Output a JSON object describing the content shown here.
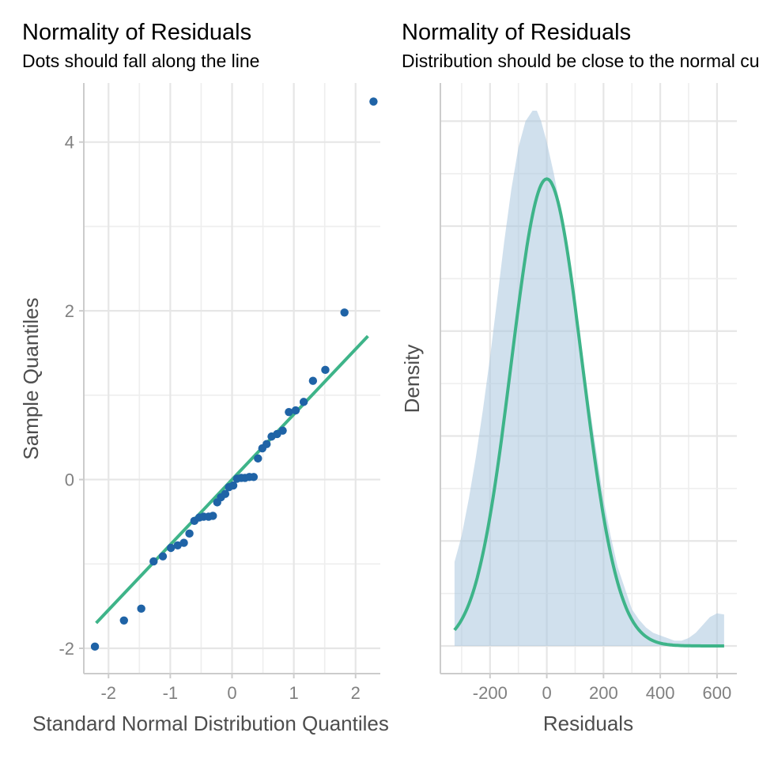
{
  "chart_data": [
    {
      "type": "scatter",
      "title": "Normality of Residuals",
      "subtitle": "Dots should fall along the line",
      "xlabel": "Standard Normal Distribution Quantiles",
      "ylabel": "Sample Quantiles",
      "xlim": [
        -2.4,
        2.4
      ],
      "ylim": [
        -2.3,
        4.7
      ],
      "x_major_ticks": [
        -2,
        -1,
        0,
        1,
        2
      ],
      "y_major_ticks": [
        -2,
        0,
        2,
        4
      ],
      "x_minor_ticks": [
        -1.5,
        -0.5,
        0.5,
        1.5
      ],
      "y_minor_ticks": [
        -1,
        1,
        3
      ],
      "grid": true,
      "point_color": "#1f63a6",
      "line_color": "#3eb489",
      "reference_line": {
        "x": [
          -2.2,
          2.2
        ],
        "y": [
          -1.7,
          1.7
        ]
      },
      "points": [
        {
          "x": -2.22,
          "y": -1.98
        },
        {
          "x": -1.75,
          "y": -1.67
        },
        {
          "x": -1.47,
          "y": -1.53
        },
        {
          "x": -1.27,
          "y": -0.97
        },
        {
          "x": -1.12,
          "y": -0.91
        },
        {
          "x": -0.99,
          "y": -0.81
        },
        {
          "x": -0.88,
          "y": -0.78
        },
        {
          "x": -0.78,
          "y": -0.75
        },
        {
          "x": -0.69,
          "y": -0.64
        },
        {
          "x": -0.61,
          "y": -0.49
        },
        {
          "x": -0.53,
          "y": -0.45
        },
        {
          "x": -0.46,
          "y": -0.44
        },
        {
          "x": -0.38,
          "y": -0.44
        },
        {
          "x": -0.31,
          "y": -0.43
        },
        {
          "x": -0.24,
          "y": -0.27
        },
        {
          "x": -0.18,
          "y": -0.21
        },
        {
          "x": -0.11,
          "y": -0.17
        },
        {
          "x": -0.05,
          "y": -0.09
        },
        {
          "x": 0.02,
          "y": -0.07
        },
        {
          "x": 0.08,
          "y": 0.01
        },
        {
          "x": 0.15,
          "y": 0.02
        },
        {
          "x": 0.21,
          "y": 0.02
        },
        {
          "x": 0.28,
          "y": 0.03
        },
        {
          "x": 0.35,
          "y": 0.03
        },
        {
          "x": 0.42,
          "y": 0.25
        },
        {
          "x": 0.49,
          "y": 0.37
        },
        {
          "x": 0.56,
          "y": 0.42
        },
        {
          "x": 0.64,
          "y": 0.51
        },
        {
          "x": 0.73,
          "y": 0.54
        },
        {
          "x": 0.82,
          "y": 0.58
        },
        {
          "x": 0.92,
          "y": 0.8
        },
        {
          "x": 1.03,
          "y": 0.82
        },
        {
          "x": 1.16,
          "y": 0.92
        },
        {
          "x": 1.31,
          "y": 1.17
        },
        {
          "x": 1.51,
          "y": 1.3
        },
        {
          "x": 1.82,
          "y": 1.98
        },
        {
          "x": 2.29,
          "y": 4.48
        }
      ]
    },
    {
      "type": "area",
      "title": "Normality of Residuals",
      "subtitle": "Distribution should be close to the normal curve",
      "xlabel": "Residuals",
      "ylabel": "Density",
      "xlim": [
        -375,
        670
      ],
      "ylim": [
        0,
        1.0
      ],
      "x_major_ticks": [
        -200,
        0,
        200,
        400,
        600
      ],
      "x_minor_ticks": [
        -300,
        -100,
        100,
        300,
        500
      ],
      "grid": true,
      "area_color": "#a9c6df",
      "curve_color": "#3eb489",
      "density_x": [
        -325,
        -300,
        -275,
        -250,
        -225,
        -200,
        -175,
        -150,
        -125,
        -100,
        -75,
        -50,
        -35,
        -20,
        0,
        25,
        50,
        75,
        100,
        125,
        150,
        175,
        200,
        225,
        250,
        275,
        300,
        325,
        350,
        375,
        400,
        425,
        450,
        475,
        500,
        525,
        550,
        575,
        600,
        625
      ],
      "density_y": [
        0.16,
        0.21,
        0.28,
        0.36,
        0.45,
        0.55,
        0.66,
        0.77,
        0.87,
        0.95,
        1.0,
        1.02,
        1.02,
        1.0,
        0.96,
        0.9,
        0.83,
        0.75,
        0.66,
        0.56,
        0.46,
        0.37,
        0.28,
        0.21,
        0.15,
        0.11,
        0.07,
        0.05,
        0.035,
        0.025,
        0.02,
        0.015,
        0.01,
        0.01,
        0.015,
        0.025,
        0.04,
        0.055,
        0.062,
        0.06
      ],
      "normal_curve": {
        "mean": 0,
        "sd": 125
      }
    }
  ]
}
